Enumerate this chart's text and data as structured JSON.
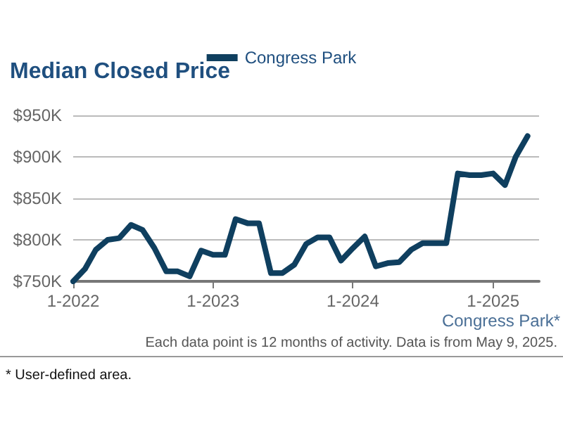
{
  "chart_data": {
    "type": "line",
    "title": "Median Closed Price",
    "x": [
      "2022-01",
      "2022-02",
      "2022-03",
      "2022-04",
      "2022-05",
      "2022-06",
      "2022-07",
      "2022-08",
      "2022-09",
      "2022-10",
      "2022-11",
      "2022-12",
      "2023-01",
      "2023-02",
      "2023-03",
      "2023-04",
      "2023-05",
      "2023-06",
      "2023-07",
      "2023-08",
      "2023-09",
      "2023-10",
      "2023-11",
      "2023-12",
      "2024-01",
      "2024-02",
      "2024-03",
      "2024-04",
      "2024-05",
      "2024-06",
      "2024-07",
      "2024-08",
      "2024-09",
      "2024-10",
      "2024-11",
      "2024-12",
      "2025-01",
      "2025-02",
      "2025-03",
      "2025-04"
    ],
    "series": [
      {
        "name": "Congress Park",
        "color": "#0f3f5f",
        "values": [
          750,
          765,
          788,
          800,
          802,
          818,
          812,
          790,
          762,
          762,
          756,
          787,
          782,
          782,
          825,
          820,
          820,
          760,
          760,
          770,
          795,
          803,
          803,
          775,
          790,
          804,
          768,
          772,
          773,
          788,
          796,
          796,
          796,
          880,
          878,
          878,
          880,
          866,
          900,
          925
        ]
      }
    ],
    "xlim": [
      "2022-01",
      "2025-05"
    ],
    "xticks": [
      {
        "value": "2022-01",
        "label": "1-2022"
      },
      {
        "value": "2023-01",
        "label": "1-2023"
      },
      {
        "value": "2024-01",
        "label": "1-2024"
      },
      {
        "value": "2025-01",
        "label": "1-2025"
      }
    ],
    "ylim": [
      750,
      950
    ],
    "yticks": [
      {
        "value": 750,
        "label": "$750K"
      },
      {
        "value": 800,
        "label": "$800K"
      },
      {
        "value": 850,
        "label": "$850K"
      },
      {
        "value": 900,
        "label": "$900K"
      },
      {
        "value": 950,
        "label": "$950K"
      }
    ],
    "grid": "y",
    "legend": "top",
    "marker": "none",
    "line_style": "solid",
    "annotations": [
      "Congress Park*",
      "Each data point is 12 months of activity. Data is from May 9, 2025.",
      "* User-defined area."
    ]
  }
}
